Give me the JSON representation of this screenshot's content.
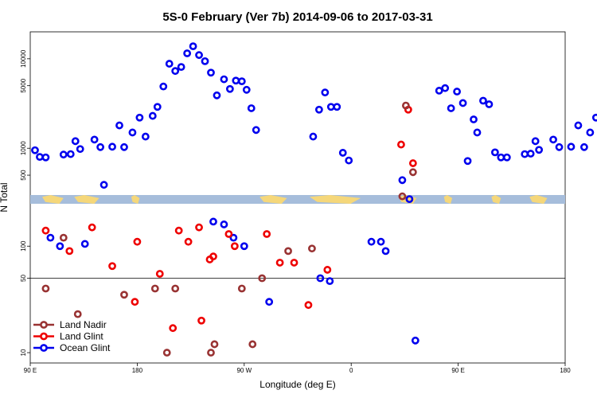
{
  "chart_data": {
    "type": "scatter",
    "title": "5S-0 February (Ver 7b)   2014-09-06 to 2017-03-31",
    "xlabel": "Longitude (deg E)",
    "ylabel": "N Total",
    "x_ticks": [
      {
        "value": 90,
        "label": "90 E"
      },
      {
        "value": 180,
        "label": "180"
      },
      {
        "value": 270,
        "label": "90 W"
      },
      {
        "value": 360,
        "label": "0"
      },
      {
        "value": 450,
        "label": "90 E"
      },
      {
        "value": 540,
        "label": "180"
      }
    ],
    "xlim": [
      90,
      540
    ],
    "upper_panel": {
      "scale": "log",
      "ylim": [
        300,
        20000
      ],
      "y_ticks": [
        {
          "value": 500,
          "label": "500"
        },
        {
          "value": 1000,
          "label": "1000"
        },
        {
          "value": 5000,
          "label": "5000"
        },
        {
          "value": 10000,
          "label": "10000"
        }
      ]
    },
    "lower_panel": {
      "scale": "log",
      "ylim": [
        8,
        250
      ],
      "reference_line": 50,
      "y_ticks": [
        {
          "value": 10,
          "label": "10"
        },
        {
          "value": 50,
          "label": "50"
        },
        {
          "value": 100,
          "label": "100"
        }
      ]
    },
    "map_strip": {
      "water_color": "#a6bddb",
      "land_color": "#f5d77a"
    },
    "legend": {
      "position": "bottom-left"
    },
    "series": [
      {
        "name": "Ocean Glint",
        "color": "#0000ee",
        "points": [
          [
            94,
            950
          ],
          [
            98,
            800
          ],
          [
            103,
            790
          ],
          [
            118,
            850
          ],
          [
            124,
            860
          ],
          [
            128,
            1200
          ],
          [
            132,
            980
          ],
          [
            144,
            1250
          ],
          [
            149,
            1030
          ],
          [
            159,
            1040
          ],
          [
            165,
            1800
          ],
          [
            169,
            1030
          ],
          [
            176,
            1500
          ],
          [
            182,
            2200
          ],
          [
            187,
            1350
          ],
          [
            193,
            2300
          ],
          [
            197,
            2900
          ],
          [
            202,
            4900
          ],
          [
            207,
            8800
          ],
          [
            212,
            7300
          ],
          [
            217,
            8100
          ],
          [
            222,
            11500
          ],
          [
            227,
            13800
          ],
          [
            232,
            11000
          ],
          [
            237,
            9400
          ],
          [
            242,
            7000
          ],
          [
            247,
            3900
          ],
          [
            253,
            5900
          ],
          [
            258,
            4600
          ],
          [
            263,
            5700
          ],
          [
            268,
            5600
          ],
          [
            272,
            4500
          ],
          [
            276,
            2800
          ],
          [
            280,
            1600
          ],
          [
            328,
            1350
          ],
          [
            333,
            2700
          ],
          [
            338,
            4200
          ],
          [
            343,
            2900
          ],
          [
            348,
            2900
          ],
          [
            353,
            890
          ],
          [
            358,
            730
          ],
          [
            434,
            4400
          ],
          [
            439,
            4700
          ],
          [
            444,
            2800
          ],
          [
            449,
            4300
          ],
          [
            454,
            3200
          ],
          [
            458,
            720
          ],
          [
            463,
            2100
          ],
          [
            466,
            1500
          ],
          [
            471,
            3400
          ],
          [
            476,
            3100
          ],
          [
            481,
            900
          ],
          [
            486,
            790
          ],
          [
            491,
            790
          ],
          [
            506,
            860
          ],
          [
            511,
            870
          ],
          [
            515,
            1200
          ],
          [
            518,
            960
          ],
          [
            530,
            1250
          ],
          [
            535,
            1030
          ],
          [
            545,
            1040
          ],
          [
            551,
            1800
          ],
          [
            556,
            1030
          ],
          [
            561,
            1500
          ],
          [
            566,
            2200
          ],
          [
            152,
            390
          ],
          [
            403,
            440
          ],
          [
            409,
            270
          ]
        ],
        "lower_points": [
          [
            107,
            120
          ],
          [
            115,
            100
          ],
          [
            136,
            105
          ],
          [
            244,
            170
          ],
          [
            253,
            160
          ],
          [
            261,
            120
          ],
          [
            270,
            100
          ],
          [
            291,
            30
          ],
          [
            334,
            50
          ],
          [
            342,
            47
          ],
          [
            377,
            110
          ],
          [
            385,
            110
          ],
          [
            389,
            90
          ],
          [
            414,
            13
          ]
        ]
      },
      {
        "name": "Land Glint",
        "color": "#ee0000",
        "points": [
          [
            402,
            1100
          ],
          [
            408,
            2700
          ],
          [
            412,
            680
          ]
        ],
        "lower_points": [
          [
            103,
            140
          ],
          [
            123,
            90
          ],
          [
            142,
            150
          ],
          [
            159,
            65
          ],
          [
            178,
            30
          ],
          [
            180,
            110
          ],
          [
            199,
            55
          ],
          [
            210,
            17
          ],
          [
            215,
            140
          ],
          [
            223,
            110
          ],
          [
            232,
            150
          ],
          [
            234,
            20
          ],
          [
            241,
            75
          ],
          [
            244,
            80
          ],
          [
            257,
            130
          ],
          [
            262,
            100
          ],
          [
            289,
            130
          ],
          [
            300,
            70
          ],
          [
            312,
            70
          ],
          [
            324,
            28
          ],
          [
            340,
            60
          ]
        ]
      },
      {
        "name": "Land Nadir",
        "color": "#993333",
        "points": [
          [
            406,
            3000
          ],
          [
            412,
            540
          ],
          [
            403,
            290
          ]
        ],
        "lower_points": [
          [
            103,
            40
          ],
          [
            118,
            120
          ],
          [
            130,
            23
          ],
          [
            169,
            35
          ],
          [
            195,
            40
          ],
          [
            205,
            10
          ],
          [
            212,
            40
          ],
          [
            242,
            10
          ],
          [
            245,
            12
          ],
          [
            268,
            40
          ],
          [
            277,
            12
          ],
          [
            285,
            50
          ],
          [
            307,
            90
          ],
          [
            327,
            95
          ]
        ]
      }
    ]
  }
}
